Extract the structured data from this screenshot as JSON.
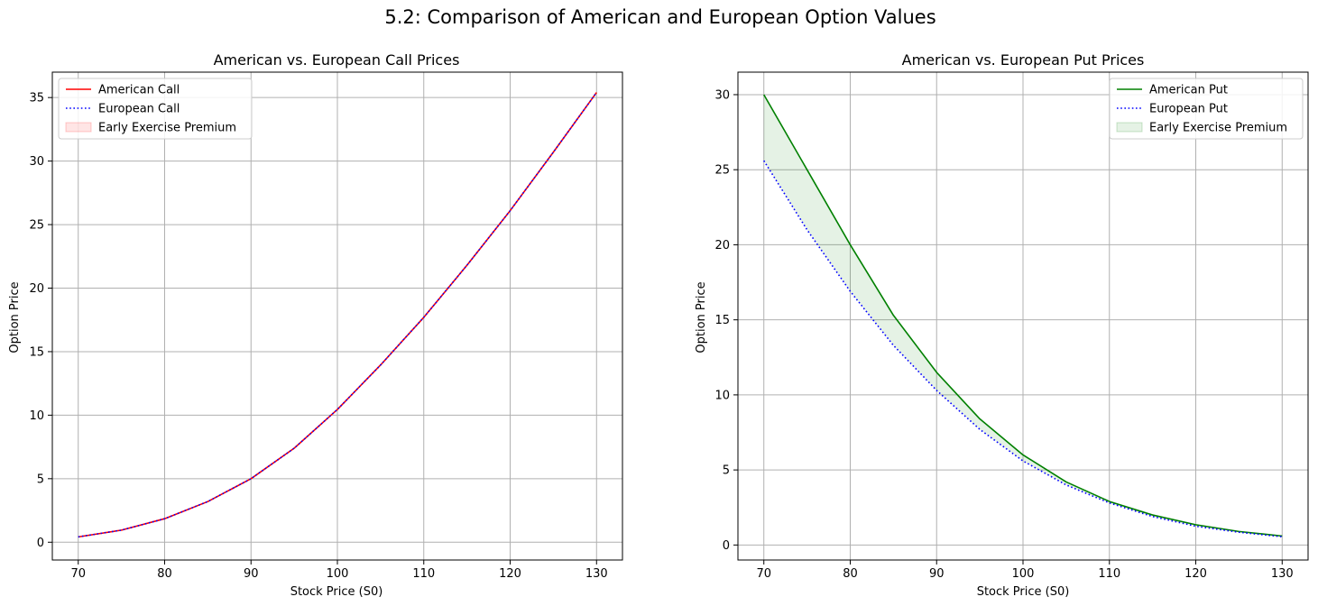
{
  "figure": {
    "title": "5.2: Comparison of American and European Option Values"
  },
  "chart_data": [
    {
      "type": "line",
      "title": "American vs. European Call Prices",
      "xlabel": "Stock Price (S0)",
      "ylabel": "Option Price",
      "xlim": [
        67,
        133
      ],
      "ylim": [
        -1.4,
        37.0
      ],
      "xticks": [
        70,
        80,
        90,
        100,
        110,
        120,
        130
      ],
      "yticks": [
        0,
        5,
        10,
        15,
        20,
        25,
        30,
        35
      ],
      "grid": true,
      "legend_position": "upper-left",
      "x": [
        70,
        75,
        80,
        85,
        90,
        95,
        100,
        105,
        110,
        115,
        120,
        125,
        130
      ],
      "series": [
        {
          "name": "American Call",
          "color": "#ff0000",
          "style": "solid",
          "values": [
            0.42,
            0.95,
            1.85,
            3.2,
            5.0,
            7.4,
            10.45,
            13.95,
            17.7,
            21.8,
            26.1,
            30.7,
            35.4
          ]
        },
        {
          "name": "European Call",
          "color": "#0000ff",
          "style": "dotted",
          "values": [
            0.42,
            0.95,
            1.85,
            3.2,
            5.0,
            7.4,
            10.45,
            13.95,
            17.7,
            21.8,
            26.1,
            30.7,
            35.4
          ]
        }
      ],
      "fill": {
        "name": "Early Exercise Premium",
        "color": "#ff0000",
        "between": [
          "American Call",
          "European Call"
        ]
      }
    },
    {
      "type": "line",
      "title": "American vs. European Put Prices",
      "xlabel": "Stock Price (S0)",
      "ylabel": "Option Price",
      "xlim": [
        67,
        133
      ],
      "ylim": [
        -1.0,
        31.5
      ],
      "xticks": [
        70,
        80,
        90,
        100,
        110,
        120,
        130
      ],
      "yticks": [
        0,
        5,
        10,
        15,
        20,
        25,
        30
      ],
      "grid": true,
      "legend_position": "upper-right",
      "x": [
        70,
        75,
        80,
        85,
        90,
        95,
        100,
        105,
        110,
        115,
        120,
        125,
        130
      ],
      "series": [
        {
          "name": "American Put",
          "color": "#008000",
          "style": "solid",
          "values": [
            30.0,
            25.0,
            20.0,
            15.3,
            11.5,
            8.4,
            6.0,
            4.2,
            2.9,
            2.0,
            1.35,
            0.9,
            0.6
          ]
        },
        {
          "name": "European Put",
          "color": "#0000ff",
          "style": "dotted",
          "values": [
            25.6,
            21.0,
            16.9,
            13.3,
            10.3,
            7.7,
            5.6,
            4.0,
            2.8,
            1.9,
            1.25,
            0.85,
            0.55
          ]
        }
      ],
      "fill": {
        "name": "Early Exercise Premium",
        "color": "#008000",
        "between": [
          "American Put",
          "European Put"
        ]
      }
    }
  ]
}
